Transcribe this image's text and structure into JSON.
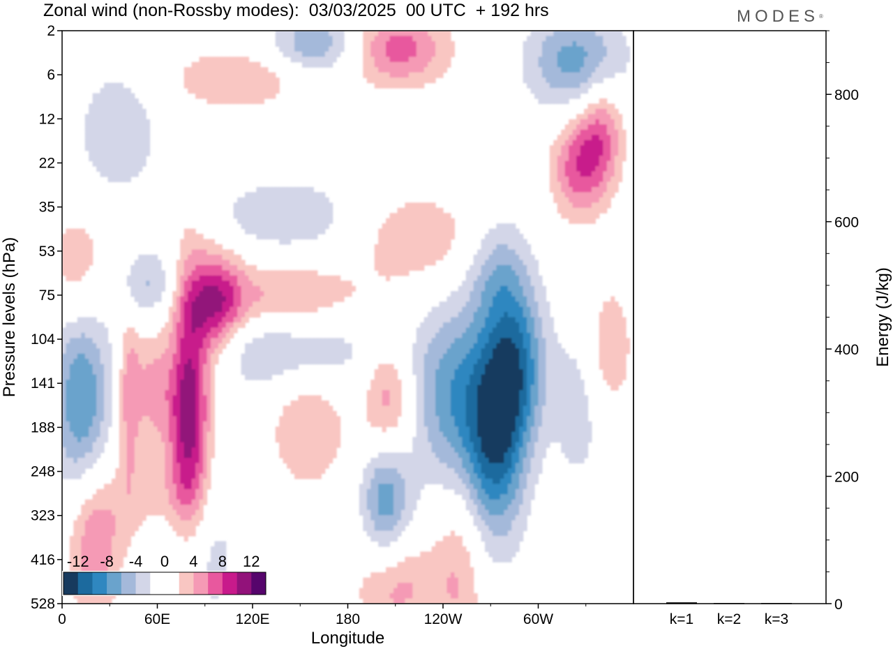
{
  "chart_data": [
    {
      "type": "heatmap",
      "title": "Zonal wind (non-Rossby modes):  03/03/2025  00 UTC  + 192 hrs",
      "xlabel": "Longitude",
      "ylabel": "Pressure levels (hPa)",
      "x_ticks": [
        {
          "label": "0",
          "lon": 0
        },
        {
          "label": "60E",
          "lon": 60
        },
        {
          "label": "120E",
          "lon": 120
        },
        {
          "label": "180",
          "lon": 180
        },
        {
          "label": "120W",
          "lon": 240
        },
        {
          "label": "60W",
          "lon": 300
        }
      ],
      "xlim": [
        0,
        360
      ],
      "y_levels": [
        "2",
        "6",
        "12",
        "22",
        "35",
        "53",
        "75",
        "104",
        "141",
        "188",
        "248",
        "323",
        "416",
        "528"
      ],
      "colorbar": {
        "tick_labels": [
          "-12",
          "-8",
          "-4",
          "0",
          "4",
          "8",
          "12"
        ],
        "colors": [
          "#173a5e",
          "#1c6a9e",
          "#2f87c0",
          "#6aa3cc",
          "#a4b9da",
          "#d3d6e8",
          "#ffffff",
          "#ffffff",
          "#f9c6c2",
          "#f59ab5",
          "#e8589e",
          "#c81a8b",
          "#92127a",
          "#56056c"
        ]
      },
      "contours": [
        {
          "lon": 12,
          "level": 8.4,
          "value": -8,
          "dlon": 13,
          "dlev": 1.6
        },
        {
          "lon": 80,
          "level": 8.5,
          "value": 12,
          "dlon": 9,
          "dlev": 2.2
        },
        {
          "lon": 98,
          "level": 6.3,
          "value": 8,
          "dlon": 11,
          "dlev": 0.9
        },
        {
          "lon": 57,
          "level": 8.0,
          "value": 5,
          "dlon": 9,
          "dlev": 1.0
        },
        {
          "lon": 42,
          "level": 8.2,
          "value": 5,
          "dlon": 5,
          "dlev": 1.4
        },
        {
          "lon": 55,
          "level": 5.8,
          "value": -5,
          "dlon": 16,
          "dlev": 0.6
        },
        {
          "lon": 135,
          "level": 6.1,
          "value": 5,
          "dlon": 40,
          "dlev": 0.6
        },
        {
          "lon": 140,
          "level": 7.2,
          "value": -5,
          "dlon": 45,
          "dlev": 0.7
        },
        {
          "lon": 205,
          "level": 8.7,
          "value": 7,
          "dlon": 11,
          "dlev": 1.2
        },
        {
          "lon": 204,
          "level": 10.4,
          "value": -9,
          "dlon": 11,
          "dlev": 1.1
        },
        {
          "lon": 250,
          "level": 8.4,
          "value": -8,
          "dlon": 20,
          "dlev": 1.5
        },
        {
          "lon": 278,
          "level": 8.8,
          "value": -9,
          "dlon": 12,
          "dlev": 1.8
        },
        {
          "lon": 290,
          "level": 7.5,
          "value": -6,
          "dlon": 12,
          "dlev": 1.2
        },
        {
          "lon": 266,
          "level": 9.8,
          "value": -3,
          "dlon": 10,
          "dlev": 1.5
        },
        {
          "lon": 160,
          "level": 0.3,
          "value": -6,
          "dlon": 20,
          "dlev": 0.5
        },
        {
          "lon": 212,
          "level": 0.4,
          "value": 7,
          "dlon": 22,
          "dlev": 0.6
        },
        {
          "lon": 324,
          "level": 0.7,
          "value": -7,
          "dlon": 22,
          "dlev": 0.8
        },
        {
          "lon": 340,
          "level": 2.3,
          "value": 6,
          "dlon": 10,
          "dlev": 0.9
        },
        {
          "lon": 325,
          "level": 3.1,
          "value": 7,
          "dlon": 12,
          "dlev": 0.8
        },
        {
          "lon": 20,
          "level": 11.6,
          "value": 6,
          "dlon": 12,
          "dlev": 1.2
        },
        {
          "lon": 85,
          "level": 11.7,
          "value": -4,
          "dlon": 18,
          "dlev": 1.4
        },
        {
          "lon": 210,
          "level": 12.6,
          "value": 5,
          "dlon": 18,
          "dlev": 0.8
        },
        {
          "lon": 250,
          "level": 12.3,
          "value": 4,
          "dlon": 12,
          "dlev": 1.5
        },
        {
          "lon": 155,
          "level": 8.9,
          "value": 4,
          "dlon": 18,
          "dlev": 1.1
        },
        {
          "lon": 140,
          "level": 4.2,
          "value": -4,
          "dlon": 30,
          "dlev": 0.6
        },
        {
          "lon": 225,
          "level": 4.7,
          "value": 4,
          "dlon": 25,
          "dlev": 0.7
        },
        {
          "lon": 10,
          "level": 5.4,
          "value": 4,
          "dlon": 14,
          "dlev": 1.0
        },
        {
          "lon": 110,
          "level": 1.1,
          "value": 4,
          "dlon": 30,
          "dlev": 0.5
        },
        {
          "lon": 275,
          "level": 5.5,
          "value": -4,
          "dlon": 14,
          "dlev": 0.9
        },
        {
          "lon": 325,
          "level": 8.6,
          "value": -3,
          "dlon": 12,
          "dlev": 1.4
        },
        {
          "lon": 345,
          "level": 7.2,
          "value": 4,
          "dlon": 10,
          "dlev": 1.0
        },
        {
          "lon": 35,
          "level": 2.3,
          "value": -4,
          "dlon": 18,
          "dlev": 1.0
        },
        {
          "lon": 60,
          "level": 10.6,
          "value": 3,
          "dlon": 25,
          "dlev": 0.8
        }
      ]
    },
    {
      "type": "bar",
      "categories": [
        "k=1",
        "k=2",
        "k=3"
      ],
      "values": [
        2,
        1,
        1
      ],
      "ylabel": "Energy (J/kg)",
      "ylim": [
        0,
        900
      ],
      "y_ticks": [
        0,
        200,
        400,
        600,
        800
      ]
    }
  ],
  "logo": {
    "text": "MODES",
    "mark": "®"
  }
}
